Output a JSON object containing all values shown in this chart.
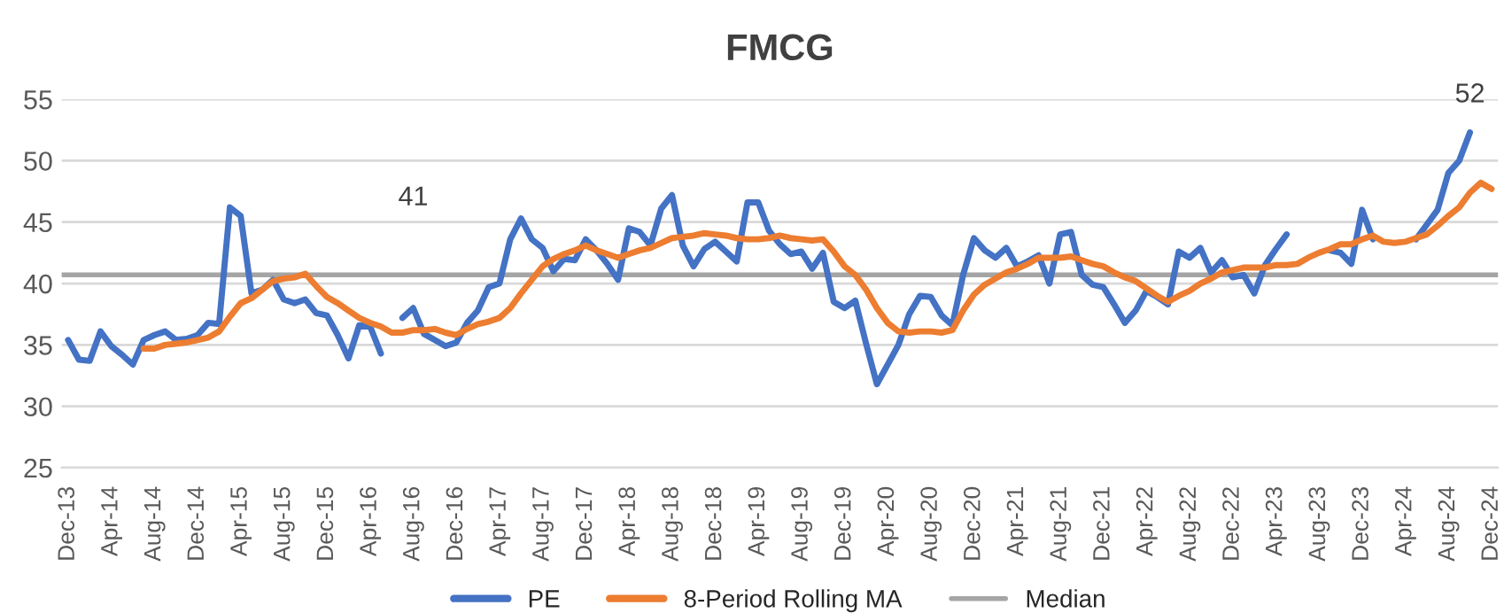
{
  "chart_data": {
    "type": "line",
    "title": "FMCG",
    "categories": [
      "Dec-13",
      null,
      null,
      null,
      "Apr-14",
      null,
      null,
      null,
      "Aug-14",
      null,
      null,
      null,
      "Dec-14",
      null,
      null,
      null,
      "Apr-15",
      null,
      null,
      null,
      "Aug-15",
      null,
      null,
      null,
      "Dec-15",
      null,
      null,
      null,
      "Apr-16",
      null,
      null,
      null,
      "Aug-16",
      null,
      null,
      null,
      "Dec-16",
      null,
      null,
      null,
      "Apr-17",
      null,
      null,
      null,
      "Aug-17",
      null,
      null,
      null,
      "Dec-17",
      null,
      null,
      null,
      "Apr-18",
      null,
      null,
      null,
      "Aug-18",
      null,
      null,
      null,
      "Dec-18",
      null,
      null,
      null,
      "Apr-19",
      null,
      null,
      null,
      "Aug-19",
      null,
      null,
      null,
      "Dec-19",
      null,
      null,
      null,
      "Apr-20",
      null,
      null,
      null,
      "Aug-20",
      null,
      null,
      null,
      "Dec-20",
      null,
      null,
      null,
      "Apr-21",
      null,
      null,
      null,
      "Aug-21",
      null,
      null,
      null,
      "Dec-21",
      null,
      null,
      null,
      "Apr-22",
      null,
      null,
      null,
      "Aug-22",
      null,
      null,
      null,
      "Dec-22",
      null,
      null,
      null,
      "Apr-23",
      null,
      null,
      null,
      "Aug-23",
      null,
      null,
      null,
      "Dec-23",
      null,
      null,
      null,
      "Apr-24",
      null,
      null,
      null,
      "Aug-24",
      null,
      null,
      null,
      "Dec-24"
    ],
    "series": [
      {
        "name": "PE",
        "color": "#4472c4",
        "values": [
          35.4,
          33.8,
          33.7,
          36.1,
          34.9,
          34.2,
          33.4,
          35.4,
          35.8,
          36.1,
          35.4,
          35.5,
          35.8,
          36.8,
          36.7,
          46.2,
          45.5,
          39.2,
          39.5,
          40.3,
          38.7,
          38.4,
          38.7,
          37.6,
          37.4,
          35.8,
          33.9,
          36.6,
          36.5,
          34.3,
          null,
          37.2,
          38.0,
          35.9,
          35.4,
          34.9,
          35.2,
          36.8,
          37.8,
          39.7,
          40.0,
          43.6,
          45.3,
          43.6,
          42.9,
          41.0,
          42.0,
          41.9,
          43.6,
          42.7,
          41.6,
          40.3,
          44.5,
          44.2,
          43.1,
          46.1,
          47.2,
          43.1,
          41.4,
          42.8,
          43.4,
          42.6,
          41.8,
          46.6,
          46.6,
          44.3,
          43.2,
          42.4,
          42.6,
          41.2,
          42.5,
          38.5,
          38.0,
          38.6,
          35.1,
          31.8,
          33.4,
          35.0,
          37.5,
          39.0,
          38.9,
          37.4,
          36.6,
          40.7,
          43.7,
          42.7,
          42.1,
          42.9,
          41.4,
          41.8,
          42.3,
          40.0,
          44.0,
          44.2,
          40.7,
          39.9,
          39.7,
          38.3,
          36.8,
          37.8,
          39.4,
          38.9,
          38.3,
          42.6,
          42.1,
          42.9,
          40.9,
          41.9,
          40.5,
          40.7,
          39.2,
          41.5,
          42.8,
          44.0,
          null,
          null,
          null,
          42.7,
          42.5,
          41.6,
          46.0,
          43.6,
          null,
          null,
          null,
          43.6,
          44.8,
          46.0,
          49.0,
          50.0,
          52.3,
          null,
          null
        ],
        "value_labels": [
          null,
          null,
          null,
          null,
          null,
          null,
          null,
          null,
          null,
          null,
          null,
          null,
          null,
          null,
          null,
          null,
          null,
          null,
          null,
          null,
          null,
          null,
          null,
          null,
          null,
          null,
          null,
          null,
          null,
          null,
          null,
          null,
          null,
          null,
          null,
          null,
          null,
          null,
          null,
          null,
          null,
          null,
          null,
          null,
          null,
          null,
          null,
          null,
          null,
          null,
          null,
          null,
          null,
          null,
          null,
          null,
          null,
          null,
          null,
          null,
          null,
          null,
          null,
          null,
          null,
          null,
          null,
          null,
          null,
          null,
          null,
          null,
          null,
          null,
          null,
          null,
          null,
          null,
          null,
          null,
          null,
          null,
          null,
          null,
          null,
          null,
          null,
          null,
          null,
          null,
          null,
          null,
          null,
          null,
          null,
          null,
          null,
          null,
          null,
          null,
          null,
          null,
          null,
          null,
          null,
          null,
          null,
          null,
          null,
          null,
          null,
          null,
          null,
          null,
          null,
          null,
          null,
          null,
          null,
          null,
          null,
          null,
          null,
          null,
          null,
          null,
          null,
          null,
          null,
          null,
          "52",
          null,
          null
        ]
      },
      {
        "name": "8-Period Rolling MA",
        "color": "#ed7d31",
        "values": [
          null,
          null,
          null,
          null,
          null,
          null,
          null,
          34.7,
          34.7,
          35.0,
          35.1,
          35.2,
          35.4,
          35.6,
          36.1,
          37.3,
          38.4,
          38.8,
          39.5,
          40.2,
          40.4,
          40.5,
          40.8,
          39.8,
          38.9,
          38.4,
          37.8,
          37.2,
          36.8,
          36.5,
          36.0,
          36.0,
          36.2,
          36.2,
          36.3,
          36.0,
          35.8,
          36.3,
          36.7,
          36.9,
          37.2,
          38.0,
          39.2,
          40.3,
          41.4,
          42.0,
          42.4,
          42.7,
          43.1,
          42.7,
          42.4,
          42.1,
          42.4,
          42.7,
          42.9,
          43.3,
          43.7,
          43.8,
          43.9,
          44.1,
          44.0,
          43.9,
          43.7,
          43.6,
          43.6,
          43.7,
          43.9,
          43.7,
          43.6,
          43.5,
          43.6,
          42.6,
          41.4,
          40.7,
          39.5,
          38.0,
          36.8,
          36.1,
          36.0,
          36.1,
          36.1,
          36.0,
          36.2,
          37.8,
          39.1,
          39.9,
          40.4,
          40.9,
          41.2,
          41.6,
          42.1,
          42.1,
          42.1,
          42.2,
          41.9,
          41.6,
          41.4,
          40.9,
          40.5,
          40.2,
          39.6,
          39.0,
          38.5,
          39.0,
          39.4,
          40.0,
          40.4,
          40.9,
          41.1,
          41.3,
          41.3,
          41.3,
          41.5,
          41.5,
          41.6,
          42.1,
          42.5,
          42.8,
          43.2,
          43.2,
          43.6,
          43.9,
          43.4,
          43.3,
          43.4,
          43.7,
          44.0,
          44.7,
          45.5,
          46.2,
          47.4,
          48.2,
          47.7
        ]
      }
    ],
    "ref_lines": [
      {
        "axis": "y",
        "value": 40.7,
        "label": "Median",
        "color": "#a5a5a5"
      }
    ],
    "annotations": [
      {
        "text": "41",
        "x": "Aug-16",
        "y": 40.7
      }
    ],
    "ylim": [
      25,
      55
    ],
    "yticks": [
      25,
      30,
      35,
      40,
      45,
      50,
      55
    ],
    "grid": "y",
    "legend": "bottom",
    "marker": "none",
    "line_style": "solid"
  }
}
